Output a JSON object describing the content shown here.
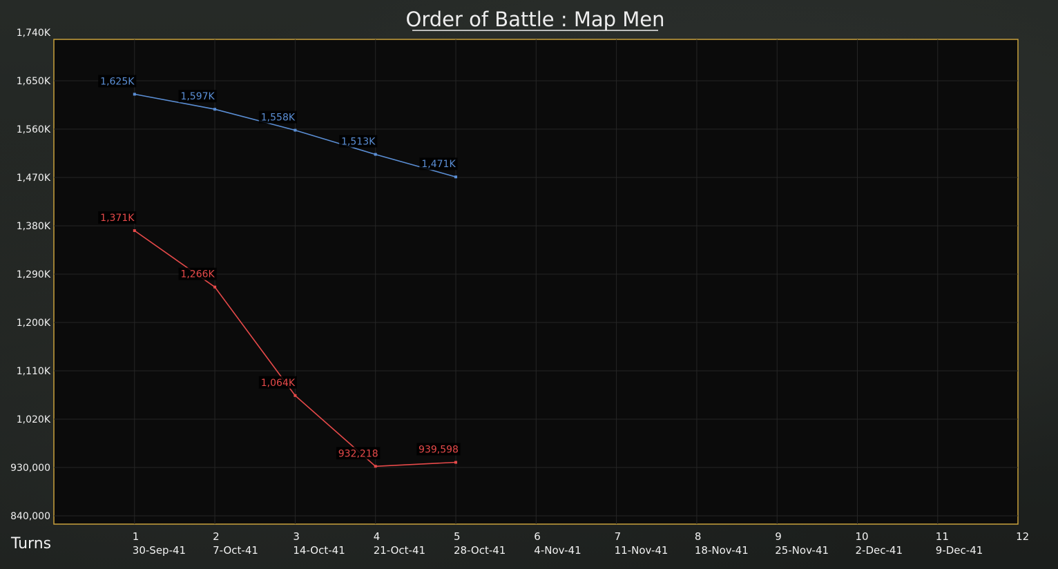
{
  "chart_data": {
    "type": "line",
    "title": "Order of Battle : Map Men",
    "xlabel": "Turns",
    "ylabel": "",
    "ylim": [
      840000,
      1740000
    ],
    "y_ticks": [
      840000,
      930000,
      1020000,
      1110000,
      1200000,
      1290000,
      1380000,
      1470000,
      1560000,
      1650000,
      1740000
    ],
    "y_tick_labels": [
      "840,000",
      "930,000",
      "1,020K",
      "1,110K",
      "1,200K",
      "1,290K",
      "1,380K",
      "1,470K",
      "1,560K",
      "1,650K",
      "1,740K"
    ],
    "xlim": [
      0,
      12
    ],
    "x_ticks": [
      1,
      2,
      3,
      4,
      5,
      6,
      7,
      8,
      9,
      10,
      11,
      12
    ],
    "x_tick_labels": [
      "1",
      "2",
      "3",
      "4",
      "5",
      "6",
      "7",
      "8",
      "9",
      "10",
      "11",
      "12"
    ],
    "x_date_labels": [
      "30-Sep-41",
      "7-Oct-41",
      "14-Oct-41",
      "21-Oct-41",
      "28-Oct-41",
      "4-Nov-41",
      "11-Nov-41",
      "18-Nov-41",
      "25-Nov-41",
      "2-Dec-41",
      "9-Dec-41",
      ""
    ],
    "grid": true,
    "series": [
      {
        "color": "#5b8fd6",
        "x": [
          1,
          2,
          3,
          4,
          5
        ],
        "values": [
          1625000,
          1597000,
          1558000,
          1513000,
          1471000
        ],
        "labels": [
          "1,625K",
          "1,597K",
          "1,558K",
          "1,513K",
          "1,471K"
        ]
      },
      {
        "color": "#e84a4a",
        "x": [
          1,
          2,
          3,
          4,
          5
        ],
        "values": [
          1371000,
          1266000,
          1064000,
          932218,
          939598
        ],
        "labels": [
          "1,371K",
          "1,266K",
          "1,064K",
          "932,218",
          "939,598"
        ]
      }
    ]
  },
  "colors": {
    "plot_border": "#c9a23c",
    "plot_background": "#0b0b0b",
    "grid": "#262626"
  }
}
